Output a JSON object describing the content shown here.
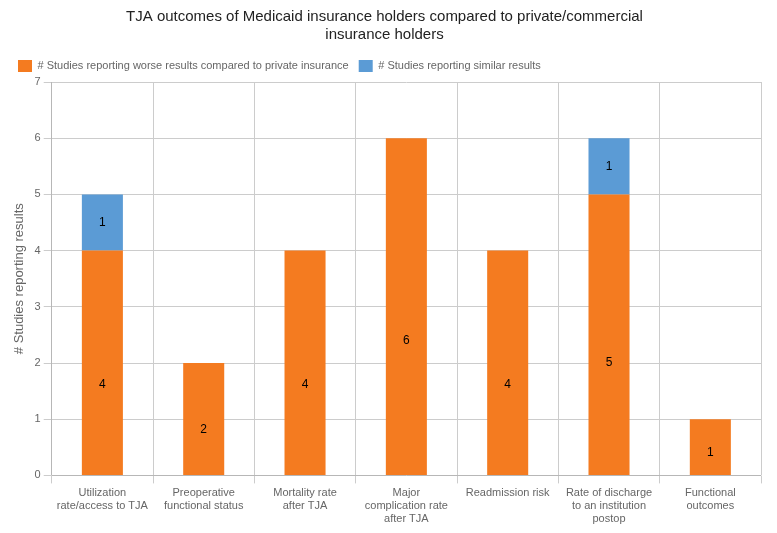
{
  "chart_data": {
    "type": "bar",
    "title": "TJA outcomes of Medicaid insurance holders compared to private/commercial\ninsurance holders",
    "ylabel": "# Studies reporting results",
    "categories": [
      "Utilization\nrate/access to TJA",
      "Preoperative\nfunctional status",
      "Mortality rate\nafter TJA",
      "Major\ncomplication rate\nafter TJA",
      "Readmission risk",
      "Rate of discharge\nto an institution\npostop",
      "Functional\noutcomes"
    ],
    "series": [
      {
        "name": "# Studies reporting worse results compared to private insurance",
        "color": "#F47B20",
        "values": [
          4,
          2,
          4,
          6,
          4,
          5,
          1
        ]
      },
      {
        "name": "# Studies reporting similar results",
        "color": "#5B9BD5",
        "values": [
          1,
          0,
          0,
          0,
          0,
          1,
          0
        ]
      }
    ],
    "stacked": true,
    "data_labels": true,
    "ylim": [
      0,
      7
    ],
    "yticks": [
      0,
      1,
      2,
      3,
      4,
      5,
      6,
      7
    ],
    "grid": true,
    "legend": "upper left"
  }
}
